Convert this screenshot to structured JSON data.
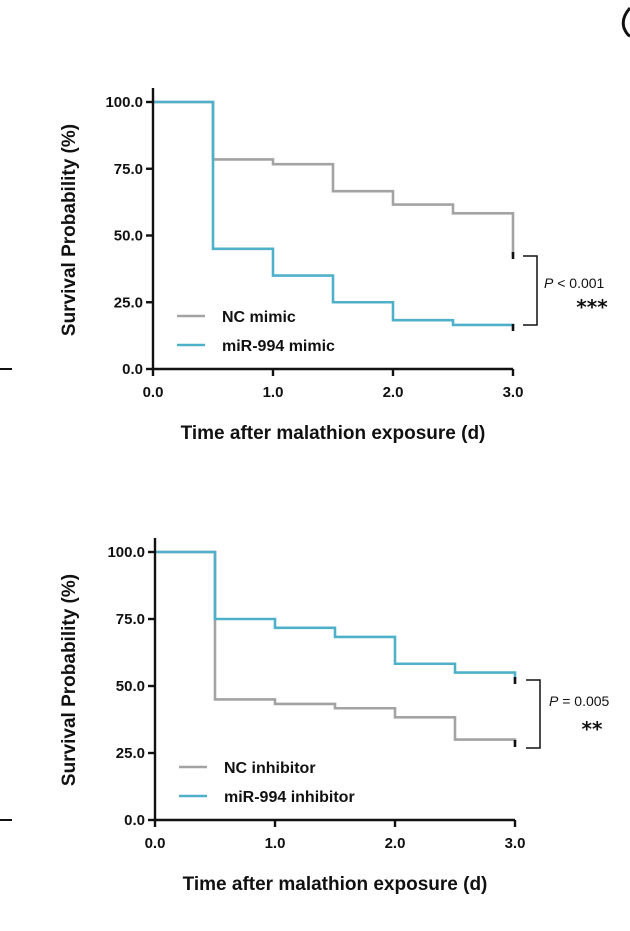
{
  "chart_data": [
    {
      "type": "line",
      "subtype": "kaplan-meier step",
      "xlabel": "Time after malathion exposure (d)",
      "ylabel": "Survival Probability (%)",
      "xlim": [
        0,
        3
      ],
      "ylim": [
        0,
        100
      ],
      "xticks": [
        "0.0",
        "1.0",
        "2.0",
        "3.0"
      ],
      "yticks": [
        "0.0",
        "25.0",
        "50.0",
        "75.0",
        "100.0"
      ],
      "legend_position": "bottom-left",
      "annotation": {
        "p_italic": "P",
        "p_rest": " < 0.001",
        "stars": "***"
      },
      "series": [
        {
          "name": "NC mimic",
          "color": "#a3a3a3",
          "x": [
            0,
            0.5,
            1.0,
            1.5,
            2.0,
            2.5,
            3.0
          ],
          "y": [
            100,
            78.5,
            76.7,
            66.6,
            61.6,
            58.3,
            43.4
          ]
        },
        {
          "name": "miR-994 mimic",
          "color": "#4fb1c9",
          "x": [
            0,
            0.5,
            1.0,
            1.5,
            2.0,
            2.5,
            3.0
          ],
          "y": [
            100,
            45.0,
            35.0,
            25.0,
            18.3,
            16.5,
            16.5
          ]
        }
      ]
    },
    {
      "type": "line",
      "subtype": "kaplan-meier step",
      "xlabel": "Time after malathion exposure (d)",
      "ylabel": "Survival Probability (%)",
      "xlim": [
        0,
        3
      ],
      "ylim": [
        0,
        100
      ],
      "xticks": [
        "0.0",
        "1.0",
        "2.0",
        "3.0"
      ],
      "yticks": [
        "0.0",
        "25.0",
        "50.0",
        "75.0",
        "100.0"
      ],
      "legend_position": "bottom-left",
      "annotation": {
        "p_italic": "P",
        "p_rest": " = 0.005",
        "stars": "**"
      },
      "series": [
        {
          "name": "NC inhibitor",
          "color": "#a3a3a3",
          "x": [
            0,
            0.5,
            1.0,
            1.5,
            2.0,
            2.5,
            3.0
          ],
          "y": [
            100,
            45.0,
            43.3,
            41.7,
            38.3,
            30.0,
            29.0
          ]
        },
        {
          "name": "miR-994 inhibitor",
          "color": "#4fb1c9",
          "x": [
            0,
            0.5,
            1.0,
            1.5,
            2.0,
            2.5,
            3.0
          ],
          "y": [
            100,
            75.0,
            71.7,
            68.3,
            58.3,
            55.0,
            54.0
          ]
        }
      ]
    }
  ]
}
